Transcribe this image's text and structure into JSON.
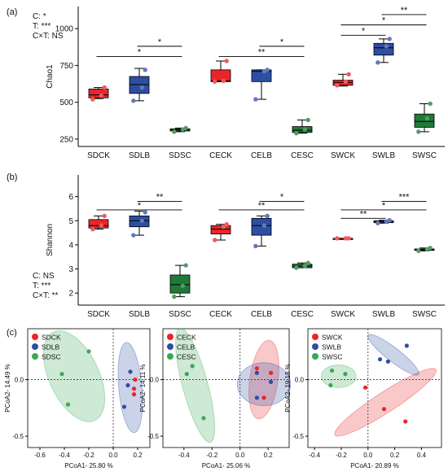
{
  "chart_data": [
    {
      "panel": "(a)",
      "type": "box",
      "ylabel": "Chao1",
      "ylim": [
        200,
        1150
      ],
      "yticks": [
        250,
        500,
        750,
        1000
      ],
      "categories": [
        "SDCK",
        "SDLB",
        "SDSC",
        "CECK",
        "CELB",
        "CESC",
        "SWCK",
        "SWLB",
        "SWSC"
      ],
      "colors": [
        "#e8262a",
        "#2e4ea3",
        "#1e7a36",
        "#e8262a",
        "#2e4ea3",
        "#1e7a36",
        "#e8262a",
        "#2e4ea3",
        "#1e7a36"
      ],
      "boxes": [
        {
          "whisker_low": 525,
          "q1": 530,
          "median": 550,
          "q3": 590,
          "whisker_high": 600,
          "points": [
            520,
            545,
            600
          ]
        },
        {
          "whisker_low": 510,
          "q1": 560,
          "median": 620,
          "q3": 675,
          "whisker_high": 730,
          "points": [
            510,
            600,
            720
          ]
        },
        {
          "whisker_low": 300,
          "q1": 305,
          "median": 312,
          "q3": 320,
          "whisker_high": 325,
          "points": [
            300,
            315,
            325
          ]
        },
        {
          "whisker_low": 640,
          "q1": 640,
          "median": 645,
          "q3": 720,
          "whisker_high": 780,
          "points": [
            640,
            645,
            780
          ]
        },
        {
          "whisker_low": 520,
          "q1": 640,
          "median": 710,
          "q3": 720,
          "whisker_high": 720,
          "points": [
            520,
            710,
            720
          ]
        },
        {
          "whisker_low": 290,
          "q1": 295,
          "median": 310,
          "q3": 335,
          "whisker_high": 380,
          "points": [
            290,
            315,
            380
          ]
        },
        {
          "whisker_low": 610,
          "q1": 615,
          "median": 635,
          "q3": 650,
          "whisker_high": 690,
          "points": [
            615,
            640,
            690
          ]
        },
        {
          "whisker_low": 770,
          "q1": 820,
          "median": 870,
          "q3": 900,
          "whisker_high": 930,
          "points": [
            770,
            880,
            930
          ]
        },
        {
          "whisker_low": 300,
          "q1": 330,
          "median": 370,
          "q3": 420,
          "whisker_high": 490,
          "points": [
            300,
            390,
            490
          ]
        }
      ],
      "significance": [
        {
          "from": 0,
          "to": 2,
          "label": "*",
          "y": 810
        },
        {
          "from": 1,
          "to": 2,
          "label": "*",
          "y": 880
        },
        {
          "from": 3,
          "to": 5,
          "label": "**",
          "y": 810
        },
        {
          "from": 4,
          "to": 5,
          "label": "*",
          "y": 880
        },
        {
          "from": 6,
          "to": 7,
          "label": "*",
          "y": 955
        },
        {
          "from": 6,
          "to": 8,
          "label": "*",
          "y": 1025
        },
        {
          "from": 7,
          "to": 8,
          "label": "**",
          "y": 1095
        }
      ],
      "stats": [
        "C: *",
        "T: ***",
        "C×T: NS"
      ]
    },
    {
      "panel": "(b)",
      "type": "box",
      "ylabel": "Shannon",
      "ylim": [
        1.5,
        6.9
      ],
      "yticks": [
        2,
        3,
        4,
        5,
        6
      ],
      "categories": [
        "SDCK",
        "SDLB",
        "SDSC",
        "CECK",
        "CELB",
        "CESC",
        "SWCK",
        "SWLB",
        "SWSC"
      ],
      "colors": [
        "#e8262a",
        "#2e4ea3",
        "#1e7a36",
        "#e8262a",
        "#2e4ea3",
        "#1e7a36",
        "#e8262a",
        "#2e4ea3",
        "#1e7a36"
      ],
      "boxes": [
        {
          "whisker_low": 4.65,
          "q1": 4.7,
          "median": 4.8,
          "q3": 5.05,
          "whisker_high": 5.2,
          "points": [
            4.65,
            4.8,
            5.2
          ]
        },
        {
          "whisker_low": 4.4,
          "q1": 4.75,
          "median": 5.0,
          "q3": 5.2,
          "whisker_high": 5.4,
          "points": [
            4.4,
            5.0,
            5.35
          ]
        },
        {
          "whisker_low": 1.85,
          "q1": 2.0,
          "median": 2.35,
          "q3": 2.75,
          "whisker_high": 3.15,
          "points": [
            1.85,
            2.3,
            3.15
          ]
        },
        {
          "whisker_low": 4.2,
          "q1": 4.45,
          "median": 4.65,
          "q3": 4.8,
          "whisker_high": 4.85,
          "points": [
            4.2,
            4.75,
            4.85
          ]
        },
        {
          "whisker_low": 3.95,
          "q1": 4.4,
          "median": 4.8,
          "q3": 5.1,
          "whisker_high": 5.2,
          "points": [
            3.95,
            4.8,
            5.2
          ]
        },
        {
          "whisker_low": 3.05,
          "q1": 3.05,
          "median": 3.12,
          "q3": 3.2,
          "whisker_high": 3.25,
          "points": [
            3.05,
            3.12,
            3.25
          ]
        },
        {
          "whisker_low": 4.27,
          "q1": 4.27,
          "median": 4.27,
          "q3": 4.27,
          "whisker_high": 4.27,
          "points": [
            4.27,
            4.27,
            4.27
          ]
        },
        {
          "whisker_low": 4.9,
          "q1": 4.92,
          "median": 4.97,
          "q3": 5.0,
          "whisker_high": 5.02,
          "points": [
            4.9,
            4.97,
            5.02
          ]
        },
        {
          "whisker_low": 3.75,
          "q1": 3.77,
          "median": 3.8,
          "q3": 3.83,
          "whisker_high": 3.87,
          "points": [
            3.75,
            3.82,
            3.87
          ]
        }
      ],
      "significance": [
        {
          "from": 0,
          "to": 2,
          "label": "*",
          "y": 5.45
        },
        {
          "from": 1,
          "to": 2,
          "label": "**",
          "y": 5.8
        },
        {
          "from": 3,
          "to": 5,
          "label": "**",
          "y": 5.45
        },
        {
          "from": 4,
          "to": 5,
          "label": "*",
          "y": 5.8
        },
        {
          "from": 6,
          "to": 7,
          "label": "**",
          "y": 5.1
        },
        {
          "from": 6,
          "to": 8,
          "label": "*",
          "y": 5.45
        },
        {
          "from": 7,
          "to": 8,
          "label": "***",
          "y": 5.8
        }
      ],
      "stats": [
        "C: NS",
        "T: ***",
        "C×T: **"
      ]
    },
    {
      "panel": "(c)",
      "type": "scatter",
      "xlabel": "PCoA1- 25.80 %",
      "ylabel": "PCoA2- 14.49 %",
      "xlim": [
        -0.7,
        0.3
      ],
      "ylim": [
        -0.6,
        0.45
      ],
      "xticks": [
        -0.6,
        -0.4,
        -0.2,
        0.0,
        0.2
      ],
      "yticks": [
        -0.5,
        0.0
      ],
      "series": [
        {
          "name": "SDCK",
          "color": "#e8262a",
          "points": [
            [
              0.17,
              -0.13
            ],
            [
              0.17,
              -0.08
            ],
            [
              0.18,
              0.0
            ]
          ]
        },
        {
          "name": "SDLB",
          "color": "#2e4ea3",
          "points": [
            [
              0.09,
              -0.24
            ],
            [
              0.14,
              0.07
            ],
            [
              0.12,
              -0.05
            ]
          ]
        },
        {
          "name": "SDSC",
          "color": "#3aa853",
          "points": [
            [
              -0.2,
              0.25
            ],
            [
              -0.42,
              0.05
            ],
            [
              -0.37,
              -0.22
            ]
          ]
        }
      ],
      "ellipses": [
        {
          "color": "#2e4ea3",
          "cx": 0.14,
          "cy": -0.07,
          "rx": 0.095,
          "ry": 0.4,
          "angle": 5
        },
        {
          "color": "#3aa853",
          "cx": -0.32,
          "cy": 0.03,
          "rx": 0.4,
          "ry": 0.22,
          "angle": -65
        }
      ]
    },
    {
      "panel": "(c)",
      "type": "scatter",
      "xlabel": "PCoA1- 25.06 %",
      "ylabel": "PCoA2- 14.11 %",
      "xlim": [
        -0.55,
        0.35
      ],
      "ylim": [
        -0.6,
        0.45
      ],
      "xticks": [
        -0.4,
        -0.2,
        0.0,
        0.2
      ],
      "yticks": [
        -0.5,
        0.0
      ],
      "series": [
        {
          "name": "CECK",
          "color": "#e8262a",
          "points": [
            [
              0.17,
              -0.16
            ],
            [
              0.12,
              0.1
            ],
            [
              0.22,
              0.06
            ]
          ]
        },
        {
          "name": "CELB",
          "color": "#2e4ea3",
          "points": [
            [
              0.12,
              0.06
            ],
            [
              0.22,
              -0.02
            ],
            [
              0.12,
              -0.16
            ]
          ]
        },
        {
          "name": "CESC",
          "color": "#3aa853",
          "points": [
            [
              -0.34,
              0.12
            ],
            [
              -0.38,
              0.05
            ],
            [
              -0.26,
              -0.34
            ]
          ]
        }
      ],
      "ellipses": [
        {
          "color": "#e8262a",
          "cx": 0.17,
          "cy": 0.0,
          "rx": 0.1,
          "ry": 0.35,
          "angle": -8
        },
        {
          "color": "#2e4ea3",
          "cx": 0.17,
          "cy": -0.04,
          "rx": 0.19,
          "ry": 0.19,
          "angle": 0
        },
        {
          "color": "#3aa853",
          "cx": -0.32,
          "cy": -0.05,
          "rx": 0.09,
          "ry": 0.52,
          "angle": 15
        }
      ]
    },
    {
      "panel": "(c)",
      "type": "scatter",
      "xlabel": "PCoA1- 20.89 %",
      "ylabel": "PCoA2- 19.18 %",
      "xlim": [
        -0.45,
        0.55
      ],
      "ylim": [
        -0.6,
        0.45
      ],
      "xticks": [
        -0.4,
        -0.2,
        0.0,
        0.2,
        0.4
      ],
      "yticks": [
        -0.5,
        0.0
      ],
      "series": [
        {
          "name": "SWCK",
          "color": "#e8262a",
          "points": [
            [
              -0.02,
              -0.07
            ],
            [
              0.12,
              -0.26
            ],
            [
              0.28,
              -0.37
            ]
          ]
        },
        {
          "name": "SWLB",
          "color": "#2e4ea3",
          "points": [
            [
              0.09,
              0.18
            ],
            [
              0.15,
              0.16
            ],
            [
              0.29,
              0.3
            ]
          ]
        },
        {
          "name": "SWSC",
          "color": "#3aa853",
          "points": [
            [
              -0.27,
              0.08
            ],
            [
              -0.17,
              0.05
            ],
            [
              -0.28,
              -0.05
            ]
          ]
        }
      ],
      "ellipses": [
        {
          "color": "#e8262a",
          "cx": 0.13,
          "cy": -0.2,
          "rx": 0.45,
          "ry": 0.09,
          "angle": 33
        },
        {
          "color": "#2e4ea3",
          "cx": 0.19,
          "cy": 0.22,
          "rx": 0.24,
          "ry": 0.06,
          "angle": -38
        },
        {
          "color": "#3aa853",
          "cx": -0.22,
          "cy": 0.03,
          "rx": 0.13,
          "ry": 0.1,
          "angle": 0
        }
      ]
    }
  ]
}
